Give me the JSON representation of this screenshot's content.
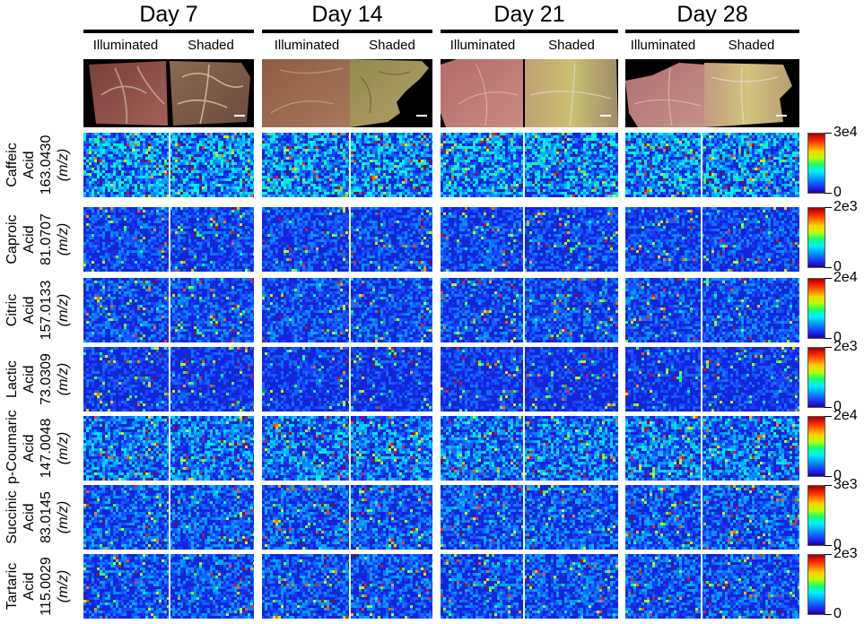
{
  "days": [
    "Day 7",
    "Day 14",
    "Day 21",
    "Day 28"
  ],
  "conditions": [
    "Illuminated",
    "Shaded"
  ],
  "compounds": [
    {
      "name": "Caffeic",
      "sub": "Acid",
      "mass": "163.0430",
      "unit": "(m/z)",
      "max_label": "3e4",
      "min_label": "0"
    },
    {
      "name": "Caproic",
      "sub": "Acid",
      "mass": "81.0707",
      "unit": "(m/z)",
      "max_label": "2e3",
      "min_label": "0"
    },
    {
      "name": "Citric",
      "sub": "Acid",
      "mass": "157.0133",
      "unit": "(m/z)",
      "max_label": "2e4",
      "min_label": "0"
    },
    {
      "name": "Lactic",
      "sub": "Acid",
      "mass": "73.0309",
      "unit": "(m/z)",
      "max_label": "2e3",
      "min_label": "0"
    },
    {
      "name": "p-Coumaric",
      "sub": "Acid",
      "mass": "147.0048",
      "unit": "(m/z)",
      "max_label": "2e4",
      "min_label": "0"
    },
    {
      "name": "Succinic",
      "sub": "Acid",
      "mass": "83.0145",
      "unit": "(m/z)",
      "max_label": "3e3",
      "min_label": "0"
    },
    {
      "name": "Tartaric",
      "sub": "Acid",
      "mass": "115.0029",
      "unit": "(m/z)",
      "max_label": "2e3",
      "min_label": "0"
    }
  ],
  "colors": {
    "heatmap_low": "#0a1cd0",
    "heatmap_high": "#ff2000",
    "day_bar": "#000000"
  }
}
